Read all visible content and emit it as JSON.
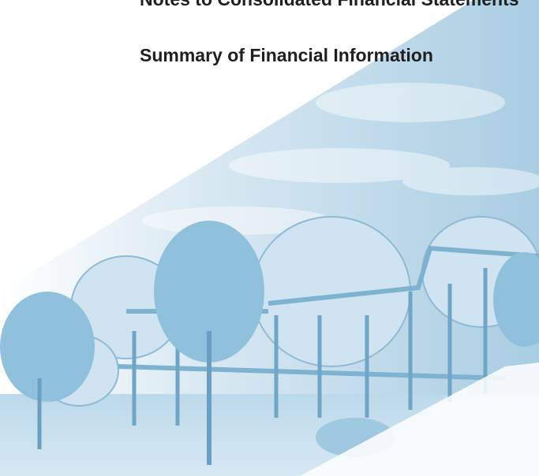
{
  "contents": {
    "items": [
      "Notes to Consolidated Financial Statements",
      "Summary of Financial Information"
    ]
  }
}
